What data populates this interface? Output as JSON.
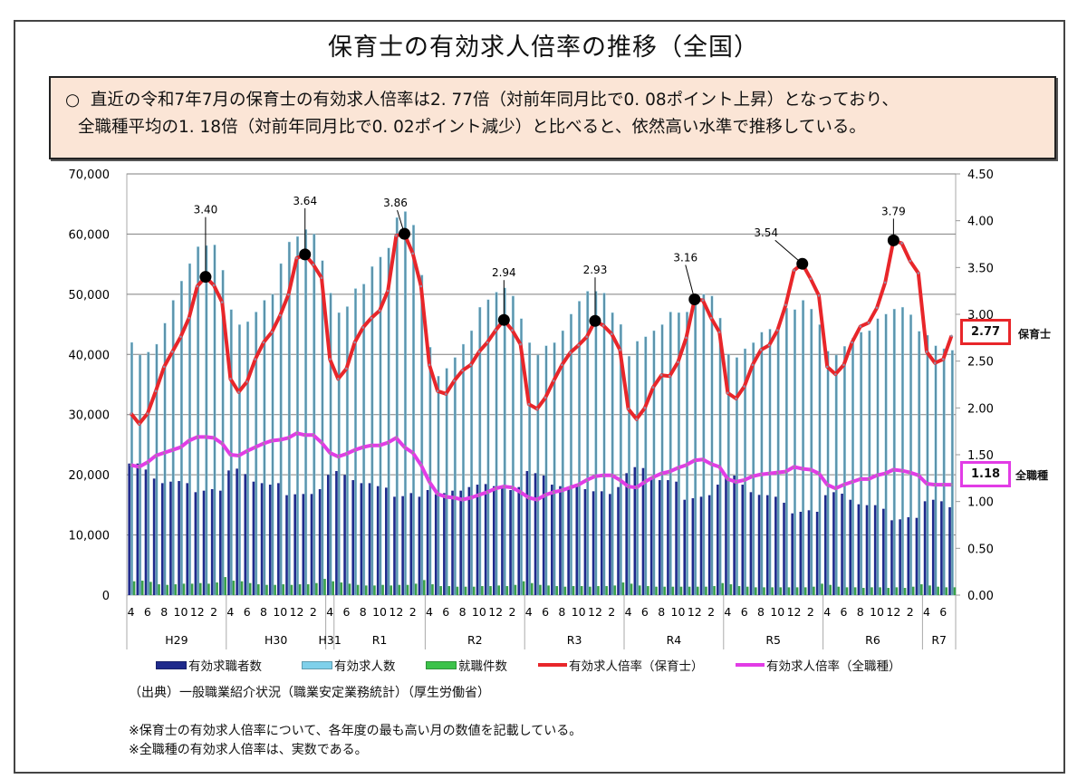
{
  "title": "保育士の有効求人倍率の推移（全国）",
  "summary": {
    "bullet": "○",
    "line1": "直近の令和7年7月の保育士の有効求人倍率は2. 77倍（対前年同月比で0. 08ポイント上昇）となっており、",
    "line2": "全職種平均の1. 18倍（対前年同月比で0. 02ポイント減少）と比べると、依然高い水準で推移している。"
  },
  "end_labels": {
    "hoikushi_value": "2.77",
    "hoikushi_label": "保育士",
    "all_value": "1.18",
    "all_label": "全職種"
  },
  "source": "（出典）一般職業紹介状況（職業安定業務統計）（厚生労働省）",
  "notes": [
    "※保育士の有効求人倍率について、各年度の最も高い月の数値を記載している。",
    "※全職種の有効求人倍率は、実数である。"
  ],
  "colors": {
    "job_seekers": "#1f2a8c",
    "openings": "#5b93ab",
    "placements": "#3aa14a",
    "ratio_hoikushi": "#e8262a",
    "ratio_all": "#e23ce6"
  },
  "chart_data": {
    "type": "combo",
    "title": "",
    "y_left": {
      "range": [
        0,
        70000
      ],
      "ticks": [
        "0",
        "10,000",
        "20,000",
        "30,000",
        "40,000",
        "50,000",
        "60,000",
        "70,000"
      ]
    },
    "y_right": {
      "range": [
        0,
        4.5
      ],
      "ticks": [
        "0.00",
        "0.50",
        "1.00",
        "1.50",
        "2.00",
        "2.50",
        "3.00",
        "3.50",
        "4.00",
        "4.50"
      ]
    },
    "grid": true,
    "legend_position": "bottom",
    "fiscal_years": [
      {
        "label": "H29",
        "months": 12,
        "ticks": [
          "4",
          "6",
          "8",
          "10",
          "12",
          "2"
        ]
      },
      {
        "label": "H30",
        "months": 12,
        "ticks": [
          "4",
          "6",
          "8",
          "10",
          "12",
          "2"
        ]
      },
      {
        "label": "H31",
        "months": 1,
        "ticks": [
          "4"
        ]
      },
      {
        "label": "R1",
        "months": 11,
        "ticks": [
          "6",
          "8",
          "10",
          "12",
          "2"
        ]
      },
      {
        "label": "R2",
        "months": 12,
        "ticks": [
          "4",
          "6",
          "8",
          "10",
          "12",
          "2"
        ]
      },
      {
        "label": "R3",
        "months": 12,
        "ticks": [
          "4",
          "6",
          "8",
          "10",
          "12",
          "2"
        ]
      },
      {
        "label": "R4",
        "months": 12,
        "ticks": [
          "4",
          "6",
          "8",
          "10",
          "12",
          "2"
        ]
      },
      {
        "label": "R5",
        "months": 12,
        "ticks": [
          "4",
          "6",
          "8",
          "10",
          "12",
          "2"
        ]
      },
      {
        "label": "R6",
        "months": 12,
        "ticks": [
          "4",
          "6",
          "8",
          "10",
          "12",
          "2"
        ]
      },
      {
        "label": "R7",
        "months": 4,
        "ticks": [
          "4",
          "6"
        ]
      }
    ],
    "series": [
      {
        "name": "有効求職者数",
        "type": "bar",
        "axis": "left",
        "values": [
          21870,
          21870,
          20870,
          19370,
          18610,
          18860,
          18960,
          18610,
          17110,
          17360,
          17610,
          17360,
          20720,
          21020,
          20120,
          18860,
          18610,
          18360,
          18610,
          16610,
          16760,
          16810,
          16810,
          17610,
          19970,
          20620,
          19970,
          19110,
          18610,
          18610,
          18110,
          17860,
          16350,
          16450,
          16960,
          16350,
          17460,
          16760,
          16960,
          17360,
          17360,
          17960,
          18360,
          18460,
          18110,
          18110,
          17460,
          17960,
          20620,
          20270,
          19870,
          18360,
          18110,
          17960,
          18360,
          17610,
          17260,
          17260,
          16810,
          17960,
          20270,
          21270,
          21120,
          19370,
          19110,
          19110,
          18860,
          15850,
          16100,
          16350,
          16610,
          18360,
          19970,
          19870,
          18360,
          17110,
          16660,
          16610,
          16350,
          15350,
          13590,
          13850,
          14100,
          13850,
          16610,
          17110,
          16860,
          15850,
          15100,
          14950,
          14950,
          14350,
          12440,
          12600,
          12940,
          12840,
          15600,
          15850,
          15600,
          14600
        ]
      },
      {
        "name": "有効求人数",
        "type": "bar",
        "axis": "left",
        "values": [
          42000,
          39900,
          40400,
          41700,
          45200,
          49000,
          52200,
          55100,
          57900,
          58100,
          58200,
          54000,
          47450,
          44950,
          45450,
          47050,
          49000,
          50000,
          55100,
          58700,
          59600,
          60750,
          60000,
          55600,
          50200,
          46950,
          47950,
          50950,
          51700,
          54600,
          56200,
          57700,
          62750,
          63750,
          61500,
          53200,
          41200,
          36400,
          37700,
          39500,
          41700,
          43950,
          47850,
          49100,
          50350,
          51050,
          49700,
          45950,
          41950,
          39900,
          41450,
          41950,
          43950,
          46700,
          48850,
          50500,
          50500,
          50200,
          46950,
          45000,
          39700,
          42200,
          42950,
          43950,
          44950,
          47050,
          46950,
          47050,
          48700,
          50000,
          49700,
          46050,
          40050,
          39500,
          40950,
          41950,
          43700,
          44200,
          43950,
          47700,
          47450,
          49000,
          47550,
          44950,
          40550,
          39900,
          41350,
          42700,
          43700,
          43950,
          45950,
          46700,
          47550,
          47850,
          46600,
          43850,
          43200,
          41450,
          40950,
          40700
        ]
      },
      {
        "name": "就職件数",
        "type": "bar",
        "axis": "left",
        "values": [
          2300,
          2400,
          2200,
          1800,
          1700,
          1800,
          1900,
          1900,
          2000,
          1900,
          2100,
          3000,
          2400,
          2300,
          2000,
          1800,
          1700,
          1700,
          1800,
          1700,
          1800,
          1800,
          2000,
          2700,
          2300,
          2100,
          1900,
          1700,
          1600,
          1600,
          1700,
          1600,
          1700,
          1700,
          1900,
          2500,
          1800,
          1500,
          1500,
          1400,
          1400,
          1400,
          1500,
          1500,
          1600,
          1500,
          1700,
          2300,
          2000,
          1700,
          1600,
          1500,
          1400,
          1500,
          1500,
          1400,
          1500,
          1500,
          1600,
          2100,
          1900,
          1600,
          1500,
          1400,
          1400,
          1400,
          1400,
          1400,
          1400,
          1400,
          1500,
          2000,
          1800,
          1500,
          1400,
          1300,
          1300,
          1300,
          1300,
          1300,
          1300,
          1300,
          1400,
          1900,
          1700,
          1400,
          1300,
          1300,
          1200,
          1300,
          1300,
          1200,
          1300,
          1200,
          1400,
          1800,
          1600,
          1400,
          1300,
          1300
        ]
      },
      {
        "name": "有効求人倍率（保育士）",
        "type": "line",
        "axis": "right",
        "values": [
          1.94,
          1.83,
          1.94,
          2.18,
          2.44,
          2.6,
          2.76,
          2.96,
          3.3,
          3.4,
          3.31,
          3.13,
          2.31,
          2.17,
          2.28,
          2.52,
          2.7,
          2.81,
          2.99,
          3.21,
          3.6,
          3.64,
          3.53,
          3.39,
          2.52,
          2.31,
          2.42,
          2.7,
          2.86,
          2.96,
          3.04,
          3.25,
          3.84,
          3.86,
          3.65,
          3.3,
          2.46,
          2.18,
          2.15,
          2.29,
          2.4,
          2.46,
          2.6,
          2.7,
          2.83,
          2.94,
          2.83,
          2.68,
          2.04,
          1.99,
          2.11,
          2.29,
          2.46,
          2.59,
          2.67,
          2.76,
          2.93,
          2.88,
          2.79,
          2.62,
          1.99,
          1.88,
          2.0,
          2.22,
          2.35,
          2.34,
          2.49,
          2.75,
          3.16,
          3.15,
          2.96,
          2.81,
          2.16,
          2.1,
          2.23,
          2.46,
          2.62,
          2.67,
          2.83,
          3.1,
          3.47,
          3.54,
          3.38,
          3.2,
          2.44,
          2.36,
          2.46,
          2.7,
          2.87,
          2.91,
          3.07,
          3.34,
          3.79,
          3.76,
          3.57,
          3.44,
          2.6,
          2.48,
          2.52,
          2.77
        ]
      },
      {
        "name": "有効求人倍率（全職種）",
        "type": "line",
        "axis": "right",
        "values": [
          1.39,
          1.37,
          1.42,
          1.49,
          1.52,
          1.55,
          1.58,
          1.65,
          1.69,
          1.69,
          1.68,
          1.62,
          1.5,
          1.49,
          1.54,
          1.58,
          1.62,
          1.65,
          1.66,
          1.68,
          1.73,
          1.71,
          1.71,
          1.63,
          1.52,
          1.48,
          1.51,
          1.55,
          1.58,
          1.6,
          1.6,
          1.63,
          1.68,
          1.58,
          1.52,
          1.39,
          1.21,
          1.08,
          1.05,
          1.04,
          1.02,
          1.04,
          1.07,
          1.1,
          1.14,
          1.16,
          1.15,
          1.1,
          1.04,
          1.02,
          1.07,
          1.1,
          1.12,
          1.15,
          1.18,
          1.23,
          1.27,
          1.28,
          1.28,
          1.23,
          1.16,
          1.15,
          1.21,
          1.26,
          1.3,
          1.32,
          1.36,
          1.39,
          1.44,
          1.45,
          1.4,
          1.37,
          1.24,
          1.21,
          1.23,
          1.27,
          1.29,
          1.3,
          1.31,
          1.32,
          1.37,
          1.35,
          1.34,
          1.3,
          1.18,
          1.14,
          1.18,
          1.21,
          1.24,
          1.24,
          1.28,
          1.3,
          1.34,
          1.33,
          1.31,
          1.28,
          1.19,
          1.18,
          1.18,
          1.18
        ]
      }
    ],
    "annotations": [
      {
        "month_index": 9,
        "label": "3.40"
      },
      {
        "month_index": 21,
        "label": "3.64"
      },
      {
        "month_index": 33,
        "label": "3.86"
      },
      {
        "month_index": 45,
        "label": "2.94"
      },
      {
        "month_index": 56,
        "label": "2.93"
      },
      {
        "month_index": 68,
        "label": "3.16"
      },
      {
        "month_index": 81,
        "label": "3.54"
      },
      {
        "month_index": 92,
        "label": "3.79"
      }
    ]
  }
}
